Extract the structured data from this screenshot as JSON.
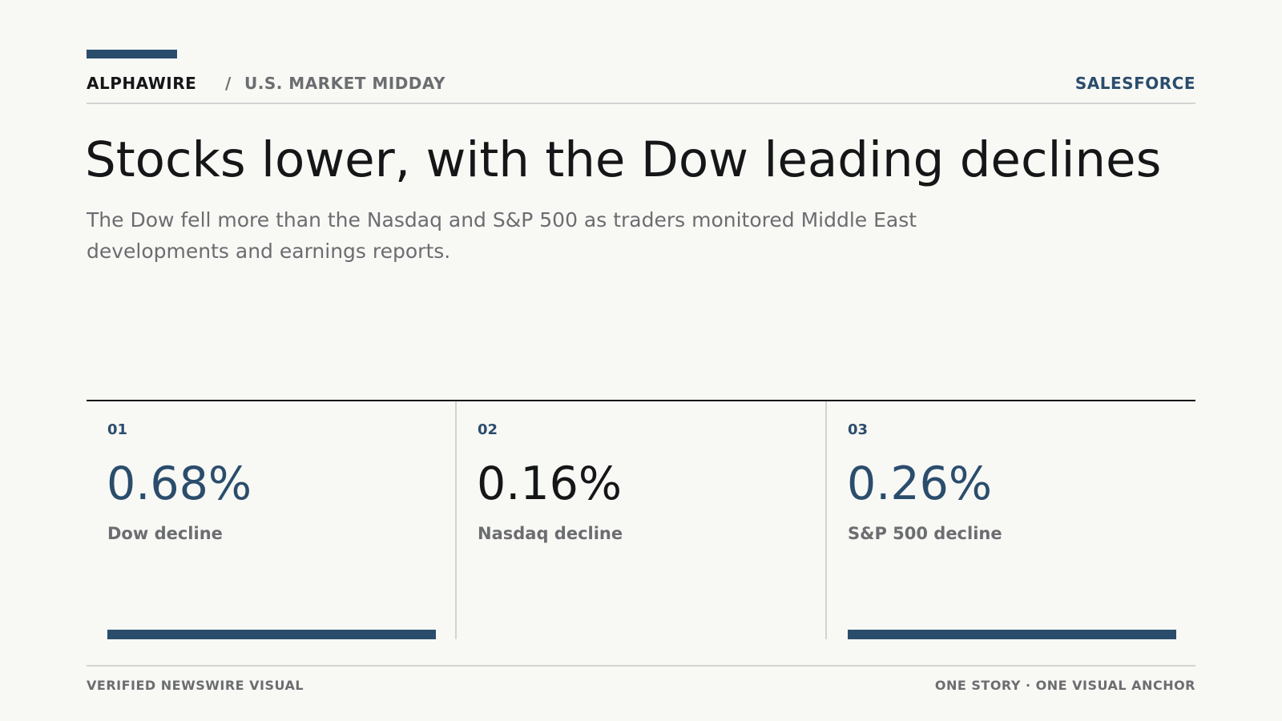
{
  "header": {
    "brand": "ALPHAWIRE",
    "separator": "/",
    "section": "U.S. MARKET MIDDAY",
    "topic": "SALESFORCE"
  },
  "article": {
    "headline": "Stocks lower, with the Dow leading declines",
    "dek": "The Dow fell more than the Nasdaq and S&P 500 as traders monitored Middle East developments and earnings reports."
  },
  "stats": [
    {
      "index": "01",
      "value": "0.68%",
      "label": "Dow decline",
      "color": "#2b4d6c",
      "bar": true
    },
    {
      "index": "02",
      "value": "0.16%",
      "label": "Nasdaq decline",
      "color": "#141617",
      "bar": false
    },
    {
      "index": "03",
      "value": "0.26%",
      "label": "S&P 500 decline",
      "color": "#2b4d6c",
      "bar": true
    }
  ],
  "footer": {
    "left": "VERIFIED NEWSWIRE VISUAL",
    "right": "ONE STORY · ONE VISUAL ANCHOR"
  },
  "colors": {
    "accent": "#2b4d6c",
    "text": "#141617",
    "muted": "#6b6d70",
    "rule": "#d2d3d3",
    "background": "#f8f8f5"
  }
}
